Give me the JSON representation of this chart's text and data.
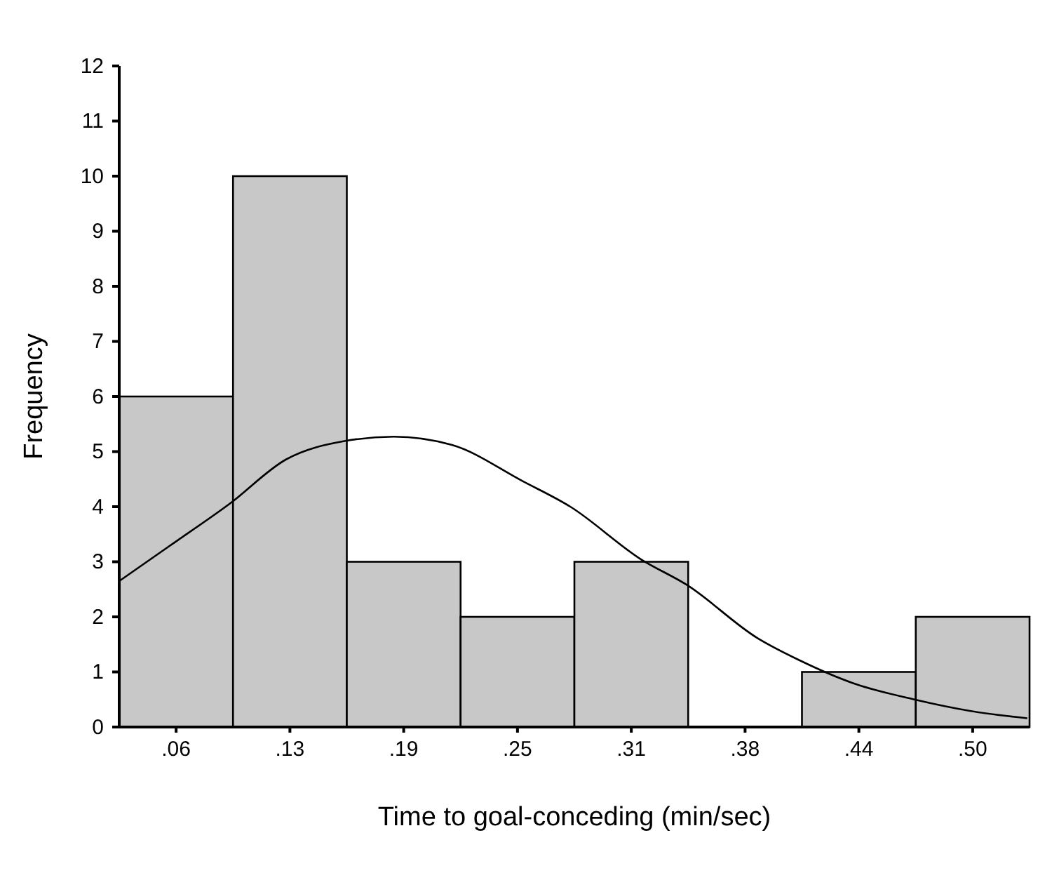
{
  "chart_data": {
    "type": "histogram",
    "xlabel": "Time to goal-conceding (min/sec)",
    "ylabel": "Frequency",
    "bins": [
      0.03125,
      0.09375,
      0.15625,
      0.21875,
      0.28125,
      0.34375,
      0.40625,
      0.46875,
      0.53125
    ],
    "series": [
      {
        "color": "#c8c8c8",
        "values": [
          6,
          10,
          3,
          2,
          3,
          0,
          1,
          2
        ]
      },
      {
        "type": "line",
        "color": "#000000",
        "x": [
          0.03125,
          0.059,
          0.0918,
          0.123,
          0.155,
          0.182,
          0.214,
          0.253,
          0.279,
          0.318,
          0.343,
          0.382,
          0.405,
          0.434,
          0.468,
          0.499,
          0.53
        ],
        "values": [
          2.65,
          3.29,
          4.05,
          4.86,
          5.19,
          5.27,
          5.12,
          4.46,
          4.0,
          3.04,
          2.58,
          1.61,
          1.21,
          0.8,
          0.5,
          0.29,
          0.16
        ]
      }
    ],
    "xlim": [
      0.03125,
      0.53125
    ],
    "xticks": [
      {
        "value": 0.0625,
        "label": ".06"
      },
      {
        "value": 0.125,
        "label": ".13"
      },
      {
        "value": 0.1875,
        "label": ".19"
      },
      {
        "value": 0.25,
        "label": ".25"
      },
      {
        "value": 0.3125,
        "label": ".31"
      },
      {
        "value": 0.375,
        "label": ".38"
      },
      {
        "value": 0.4375,
        "label": ".44"
      },
      {
        "value": 0.5,
        "label": ".50"
      }
    ],
    "ylim": [
      0,
      12
    ],
    "yticks": [
      0,
      1,
      2,
      3,
      4,
      5,
      6,
      7,
      8,
      9,
      10,
      11,
      12
    ],
    "grid": false
  }
}
